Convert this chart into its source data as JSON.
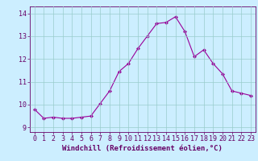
{
  "x": [
    0,
    1,
    2,
    3,
    4,
    5,
    6,
    7,
    8,
    9,
    10,
    11,
    12,
    13,
    14,
    15,
    16,
    17,
    18,
    19,
    20,
    21,
    22,
    23
  ],
  "y": [
    9.8,
    9.4,
    9.45,
    9.4,
    9.4,
    9.45,
    9.5,
    10.05,
    10.6,
    11.45,
    11.8,
    12.45,
    13.0,
    13.55,
    13.6,
    13.85,
    13.2,
    12.1,
    12.4,
    11.8,
    11.35,
    10.6,
    10.5,
    10.4
  ],
  "xlim": [
    -0.5,
    23.5
  ],
  "ylim": [
    8.8,
    14.3
  ],
  "yticks": [
    9,
    10,
    11,
    12,
    13,
    14
  ],
  "xticks": [
    0,
    1,
    2,
    3,
    4,
    5,
    6,
    7,
    8,
    9,
    10,
    11,
    12,
    13,
    14,
    15,
    16,
    17,
    18,
    19,
    20,
    21,
    22,
    23
  ],
  "xlabel": "Windchill (Refroidissement éolien,°C)",
  "line_color": "#990099",
  "marker": "D",
  "marker_size": 2.0,
  "bg_color": "#cceeff",
  "grid_color": "#99cccc",
  "tick_label_color": "#660066",
  "axis_label_color": "#660066",
  "xlabel_fontsize": 6.5,
  "tick_fontsize": 6.0
}
